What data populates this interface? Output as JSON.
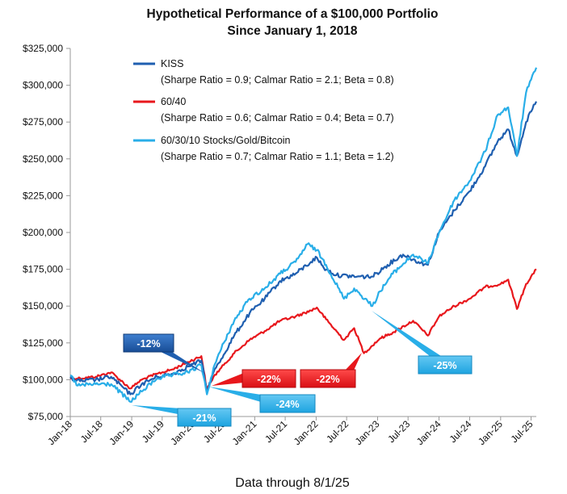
{
  "chart_data": {
    "type": "line",
    "title": "Hypothetical Performance of a $100,000 Portfolio",
    "subtitle": "Since January 1, 2018",
    "footnote": "Data through 8/1/25",
    "y_ticks": [
      "$75,000",
      "$100,000",
      "$125,000",
      "$150,000",
      "$175,000",
      "$200,000",
      "$225,000",
      "$250,000",
      "$275,000",
      "$300,000",
      "$325,000"
    ],
    "ylim": [
      75000,
      325000
    ],
    "x_ticks": [
      "Jan-18",
      "Jul-18",
      "Jan-19",
      "Jul-19",
      "Jan-20",
      "Jul-20",
      "Jan-21",
      "Jul-21",
      "Jan-22",
      "Jul-22",
      "Jan-23",
      "Jul-23",
      "Jan-24",
      "Jul-24",
      "Jan-25",
      "Jul-25"
    ],
    "xlim": [
      "2018-01-01",
      "2025-08-01"
    ],
    "grid": false,
    "legend_position": "top-left",
    "series": [
      {
        "name": "KISS",
        "stats": "(Sharpe Ratio = 0.9; Calmar Ratio = 2.1; Beta = 0.8)",
        "color": "#1f5fb0",
        "points": [
          [
            "2018-01-01",
            101000
          ],
          [
            "2018-03-01",
            99000
          ],
          [
            "2018-06-01",
            100000
          ],
          [
            "2018-09-01",
            102000
          ],
          [
            "2018-12-24",
            90000
          ],
          [
            "2019-03-01",
            97000
          ],
          [
            "2019-06-01",
            102000
          ],
          [
            "2019-09-01",
            104000
          ],
          [
            "2019-12-01",
            109000
          ],
          [
            "2020-02-19",
            113000
          ],
          [
            "2020-03-23",
            92000
          ],
          [
            "2020-05-01",
            105000
          ],
          [
            "2020-07-01",
            117000
          ],
          [
            "2020-09-01",
            130000
          ],
          [
            "2020-12-01",
            145000
          ],
          [
            "2021-03-01",
            155000
          ],
          [
            "2021-06-01",
            167000
          ],
          [
            "2021-09-01",
            172000
          ],
          [
            "2021-12-01",
            180000
          ],
          [
            "2022-01-05",
            183000
          ],
          [
            "2022-02-15",
            176000
          ],
          [
            "2022-05-01",
            171000
          ],
          [
            "2022-09-01",
            170000
          ],
          [
            "2022-12-01",
            170000
          ],
          [
            "2023-03-01",
            178000
          ],
          [
            "2023-06-01",
            185000
          ],
          [
            "2023-09-01",
            180000
          ],
          [
            "2023-10-27",
            178000
          ],
          [
            "2024-01-01",
            200000
          ],
          [
            "2024-04-01",
            215000
          ],
          [
            "2024-07-01",
            228000
          ],
          [
            "2024-10-01",
            245000
          ],
          [
            "2024-12-15",
            262000
          ],
          [
            "2025-02-15",
            270000
          ],
          [
            "2025-04-08",
            252000
          ],
          [
            "2025-06-01",
            275000
          ],
          [
            "2025-08-01",
            289000
          ]
        ]
      },
      {
        "name": "60/40",
        "stats": "(Sharpe Ratio = 0.6; Calmar Ratio = 0.4; Beta = 0.7)",
        "color": "#e8171c",
        "points": [
          [
            "2018-01-01",
            101000
          ],
          [
            "2018-03-01",
            101000
          ],
          [
            "2018-06-01",
            102000
          ],
          [
            "2018-09-01",
            105000
          ],
          [
            "2018-12-24",
            94000
          ],
          [
            "2019-03-01",
            100000
          ],
          [
            "2019-06-01",
            104000
          ],
          [
            "2019-09-01",
            107000
          ],
          [
            "2019-12-01",
            112000
          ],
          [
            "2020-02-19",
            116000
          ],
          [
            "2020-03-23",
            93000
          ],
          [
            "2020-05-01",
            102000
          ],
          [
            "2020-07-01",
            110000
          ],
          [
            "2020-09-01",
            118000
          ],
          [
            "2020-12-01",
            127000
          ],
          [
            "2021-03-01",
            133000
          ],
          [
            "2021-06-01",
            140000
          ],
          [
            "2021-09-01",
            143000
          ],
          [
            "2021-12-01",
            147000
          ],
          [
            "2022-01-05",
            149000
          ],
          [
            "2022-03-01",
            141000
          ],
          [
            "2022-06-15",
            127000
          ],
          [
            "2022-08-15",
            135000
          ],
          [
            "2022-10-12",
            118000
          ],
          [
            "2023-01-15",
            128000
          ],
          [
            "2023-04-01",
            132000
          ],
          [
            "2023-07-31",
            140000
          ],
          [
            "2023-10-27",
            130000
          ],
          [
            "2024-01-01",
            143000
          ],
          [
            "2024-04-01",
            150000
          ],
          [
            "2024-07-01",
            155000
          ],
          [
            "2024-10-01",
            163000
          ],
          [
            "2025-01-01",
            165000
          ],
          [
            "2025-02-15",
            168000
          ],
          [
            "2025-04-08",
            148000
          ],
          [
            "2025-06-01",
            165000
          ],
          [
            "2025-08-01",
            175000
          ]
        ]
      },
      {
        "name": "60/30/10 Stocks/Gold/Bitcoin",
        "stats": "(Sharpe Ratio = 0.7; Calmar Ratio = 1.1; Beta = 1.2)",
        "color": "#29aee8",
        "points": [
          [
            "2018-01-01",
            103000
          ],
          [
            "2018-02-15",
            96000
          ],
          [
            "2018-06-01",
            97000
          ],
          [
            "2018-09-01",
            97000
          ],
          [
            "2018-12-24",
            85000
          ],
          [
            "2019-03-01",
            92000
          ],
          [
            "2019-06-01",
            101000
          ],
          [
            "2019-09-01",
            103000
          ],
          [
            "2019-12-01",
            105000
          ],
          [
            "2020-02-19",
            110000
          ],
          [
            "2020-03-23",
            90000
          ],
          [
            "2020-05-01",
            108000
          ],
          [
            "2020-07-01",
            125000
          ],
          [
            "2020-09-01",
            140000
          ],
          [
            "2020-12-01",
            155000
          ],
          [
            "2021-03-01",
            162000
          ],
          [
            "2021-06-01",
            172000
          ],
          [
            "2021-09-01",
            180000
          ],
          [
            "2021-11-10",
            192000
          ],
          [
            "2022-01-05",
            188000
          ],
          [
            "2022-03-01",
            178000
          ],
          [
            "2022-06-15",
            155000
          ],
          [
            "2022-08-15",
            162000
          ],
          [
            "2022-12-01",
            150000
          ],
          [
            "2023-01-15",
            160000
          ],
          [
            "2023-04-01",
            172000
          ],
          [
            "2023-07-31",
            185000
          ],
          [
            "2023-10-27",
            179000
          ],
          [
            "2024-01-01",
            200000
          ],
          [
            "2024-04-01",
            222000
          ],
          [
            "2024-07-01",
            235000
          ],
          [
            "2024-10-01",
            255000
          ],
          [
            "2024-12-15",
            280000
          ],
          [
            "2025-02-15",
            285000
          ],
          [
            "2025-04-08",
            252000
          ],
          [
            "2025-06-01",
            295000
          ],
          [
            "2025-08-01",
            312000
          ]
        ]
      }
    ],
    "callouts": [
      {
        "label": "-12%",
        "series": "KISS",
        "color": "#1f5fb0"
      },
      {
        "label": "-21%",
        "series": "60/30/10 Stocks/Gold/Bitcoin",
        "color": "#29aee8"
      },
      {
        "label": "-24%",
        "series": "60/30/10 Stocks/Gold/Bitcoin",
        "color": "#29aee8"
      },
      {
        "label": "-22%",
        "series": "60/40",
        "color": "#e8171c"
      },
      {
        "label": "-22%",
        "series": "60/40",
        "color": "#e8171c"
      },
      {
        "label": "-25%",
        "series": "60/30/10 Stocks/Gold/Bitcoin",
        "color": "#29aee8"
      }
    ]
  }
}
